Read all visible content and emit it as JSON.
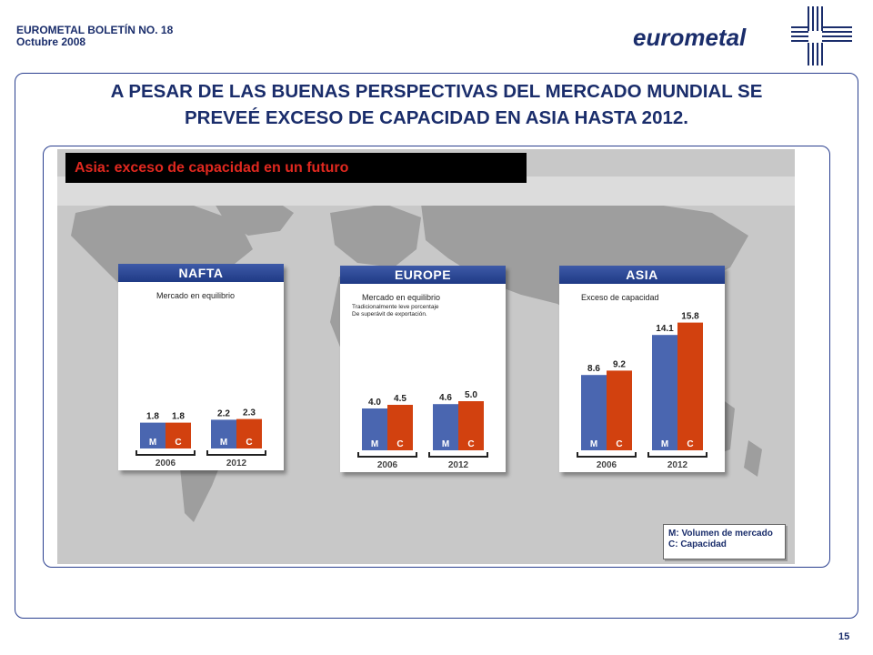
{
  "header": {
    "line1": "EUROMETAL BOLETÍN NO. 18",
    "line2": "Octubre 2008"
  },
  "logo": {
    "text": "eurometal"
  },
  "title": {
    "line1": "A PESAR DE LAS BUENAS PERSPECTIVAS DEL MERCADO MUNDIAL SE",
    "line2": "PREVEÉ EXCESO DE CAPACIDAD EN ASIA HASTA 2012."
  },
  "section_label": "Asia: exceso de capacidad en un futuro",
  "legend": {
    "line1": "M: Volumen de mercado",
    "line2": "C: Capacidad"
  },
  "page_number": "15",
  "colors": {
    "market": "#4a66b0",
    "capacity": "#d2410f",
    "title": "#1a2d6b",
    "label_red": "#e0281f"
  },
  "chart_data": [
    {
      "type": "bar",
      "title": "NAFTA",
      "subtitle": "Mercado en equilibrio",
      "note": "",
      "categories": [
        "2006",
        "2012"
      ],
      "series": [
        {
          "name": "M",
          "values": [
            1.8,
            2.2
          ]
        },
        {
          "name": "C",
          "values": [
            1.8,
            2.3
          ]
        }
      ]
    },
    {
      "type": "bar",
      "title": "EUROPE",
      "subtitle": "Mercado en equilibrio",
      "note": "Tradicionalmente leve porcentaje De superávit de exportación.",
      "categories": [
        "2006",
        "2012"
      ],
      "series": [
        {
          "name": "M",
          "values": [
            4.0,
            4.6
          ]
        },
        {
          "name": "C",
          "values": [
            4.5,
            5.0
          ]
        }
      ]
    },
    {
      "type": "bar",
      "title": "ASIA",
      "subtitle": "Exceso de capacidad",
      "note": "",
      "categories": [
        "2006",
        "2012"
      ],
      "series": [
        {
          "name": "M",
          "values": [
            8.6,
            14.1
          ]
        },
        {
          "name": "C",
          "values": [
            9.2,
            15.8
          ]
        }
      ]
    }
  ]
}
